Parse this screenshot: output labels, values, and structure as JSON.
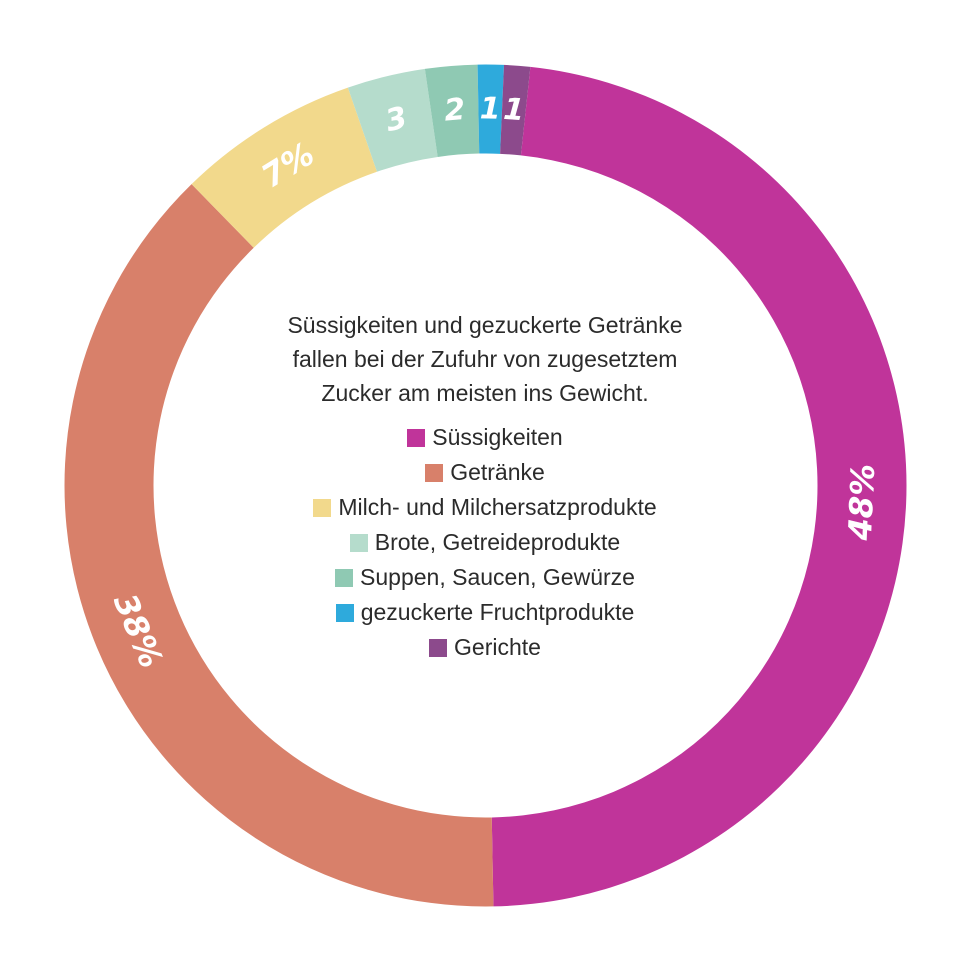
{
  "chart_data": {
    "type": "pie",
    "variant": "donut",
    "title": "Süssigkeiten und gezuckerte Getränke fallen bei der Zufuhr von zugesetztem Zucker am meisten ins Gewicht.",
    "title_lines": [
      "Süssigkeiten und gezuckerte Getränke",
      "fallen bei der Zufuhr von zugesetztem",
      "Zucker am meisten ins Gewicht."
    ],
    "legend_position": "center",
    "slices": [
      {
        "name": "Süssigkeiten",
        "value": 48,
        "label": "48%",
        "color": "#c0349a"
      },
      {
        "name": "Getränke",
        "value": 38,
        "label": "38%",
        "color": "#d8806a"
      },
      {
        "name": "Milch- und Milchersatzprodukte",
        "value": 7,
        "label": "7%",
        "color": "#f2d98c"
      },
      {
        "name": "Brote, Getreideprodukte",
        "value": 3,
        "label": "3",
        "color": "#b5dccc"
      },
      {
        "name": "Suppen, Saucen, Gewürze",
        "value": 2,
        "label": "2",
        "color": "#8fc9b3"
      },
      {
        "name": "gezuckerte Fruchtprodukte",
        "value": 1,
        "label": "1",
        "color": "#2eaadc"
      },
      {
        "name": "Gerichte",
        "value": 1,
        "label": "1",
        "color": "#8c4a8c"
      }
    ]
  }
}
